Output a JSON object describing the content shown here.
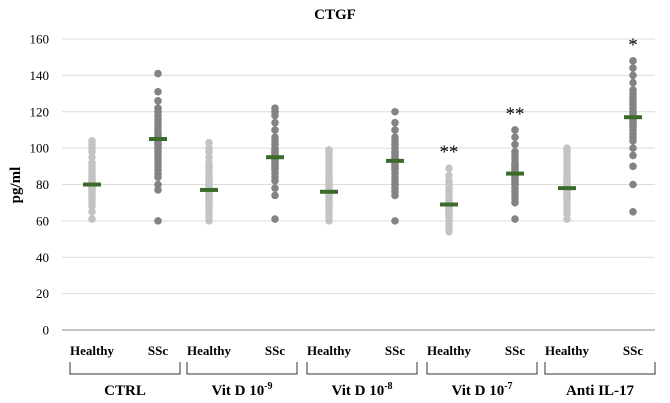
{
  "chart_data": {
    "type": "scatter",
    "title": "CTGF",
    "ylabel": "pg/ml",
    "xlabel": "",
    "ylim": [
      0,
      160
    ],
    "yticks": [
      0,
      20,
      40,
      60,
      80,
      100,
      120,
      140,
      160
    ],
    "grid": true,
    "groups": [
      {
        "label": "CTRL",
        "exp": "",
        "series": [
          {
            "name": "Healthy",
            "mean": 80,
            "points": [
              61,
              65,
              68,
              70,
              72,
              74,
              75,
              76,
              77,
              78,
              79,
              80,
              80,
              81,
              82,
              83,
              84,
              85,
              86,
              88,
              90,
              92,
              95,
              98,
              100,
              102,
              104
            ],
            "significance": ""
          },
          {
            "name": "SSc",
            "mean": 105,
            "points": [
              60,
              77,
              80,
              84,
              86,
              88,
              90,
              92,
              94,
              96,
              98,
              100,
              101,
              102,
              103,
              104,
              105,
              106,
              107,
              108,
              110,
              112,
              114,
              116,
              118,
              120,
              122,
              126,
              131,
              141
            ],
            "significance": ""
          }
        ]
      },
      {
        "label": "Vit D 10",
        "exp": "-9",
        "series": [
          {
            "name": "Healthy",
            "mean": 77,
            "points": [
              60,
              62,
              64,
              66,
              68,
              70,
              71,
              72,
              73,
              74,
              75,
              76,
              77,
              78,
              79,
              80,
              81,
              82,
              84,
              86,
              88,
              90,
              92,
              95,
              98,
              100,
              103
            ],
            "significance": ""
          },
          {
            "name": "SSc",
            "mean": 95,
            "points": [
              61,
              74,
              78,
              82,
              84,
              86,
              88,
              89,
              90,
              91,
              92,
              93,
              94,
              95,
              96,
              97,
              98,
              99,
              100,
              102,
              104,
              106,
              110,
              114,
              118,
              120,
              122
            ],
            "significance": ""
          }
        ]
      },
      {
        "label": "Vit D 10",
        "exp": "-8",
        "series": [
          {
            "name": "Healthy",
            "mean": 76,
            "points": [
              60,
              62,
              64,
              66,
              68,
              70,
              71,
              72,
              73,
              74,
              75,
              76,
              77,
              78,
              79,
              80,
              81,
              82,
              84,
              86,
              88,
              90,
              92,
              94,
              96,
              98,
              99
            ],
            "significance": ""
          },
          {
            "name": "SSc",
            "mean": 93,
            "points": [
              60,
              74,
              76,
              78,
              80,
              82,
              84,
              86,
              88,
              89,
              90,
              91,
              92,
              93,
              94,
              95,
              96,
              97,
              98,
              100,
              102,
              104,
              106,
              110,
              114,
              120
            ],
            "significance": ""
          }
        ]
      },
      {
        "label": "Vit D 10",
        "exp": "-7",
        "series": [
          {
            "name": "Healthy",
            "mean": 69,
            "points": [
              54,
              56,
              58,
              60,
              62,
              63,
              64,
              65,
              66,
              67,
              68,
              69,
              70,
              71,
              72,
              74,
              76,
              78,
              80,
              82,
              85,
              89
            ],
            "significance": "**"
          },
          {
            "name": "SSc",
            "mean": 86,
            "points": [
              61,
              70,
              72,
              74,
              76,
              78,
              80,
              81,
              82,
              83,
              84,
              85,
              86,
              87,
              88,
              89,
              90,
              91,
              92,
              94,
              96,
              98,
              102,
              106,
              110
            ],
            "significance": "**"
          }
        ]
      },
      {
        "label": "Anti IL-17",
        "exp": "",
        "series": [
          {
            "name": "Healthy",
            "mean": 78,
            "points": [
              61,
              64,
              66,
              68,
              70,
              72,
              73,
              74,
              75,
              76,
              77,
              78,
              79,
              80,
              81,
              82,
              84,
              86,
              88,
              90,
              92,
              94,
              96,
              98,
              100
            ],
            "significance": ""
          },
          {
            "name": "SSc",
            "mean": 117,
            "points": [
              65,
              80,
              90,
              96,
              100,
              104,
              106,
              108,
              110,
              112,
              113,
              114,
              115,
              116,
              117,
              118,
              119,
              120,
              122,
              124,
              126,
              128,
              130,
              132,
              136,
              140,
              144,
              148
            ],
            "significance": "*"
          }
        ]
      }
    ],
    "colors": {
      "healthy": "#c3c3c3",
      "ssc": "#838383",
      "mean": "#3b6b2b",
      "grid": "#dcdcdc",
      "axis": "#888888"
    }
  }
}
